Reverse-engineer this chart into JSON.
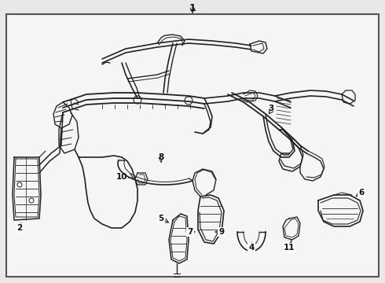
{
  "bg_color": "#e8e8e8",
  "inner_bg": "#f5f5f5",
  "border_color": "#555555",
  "line_color": "#222222",
  "label_color": "#111111",
  "fig_width": 4.9,
  "fig_height": 3.6,
  "dpi": 100,
  "label_fontsize": 7.5,
  "title_fontsize": 9
}
